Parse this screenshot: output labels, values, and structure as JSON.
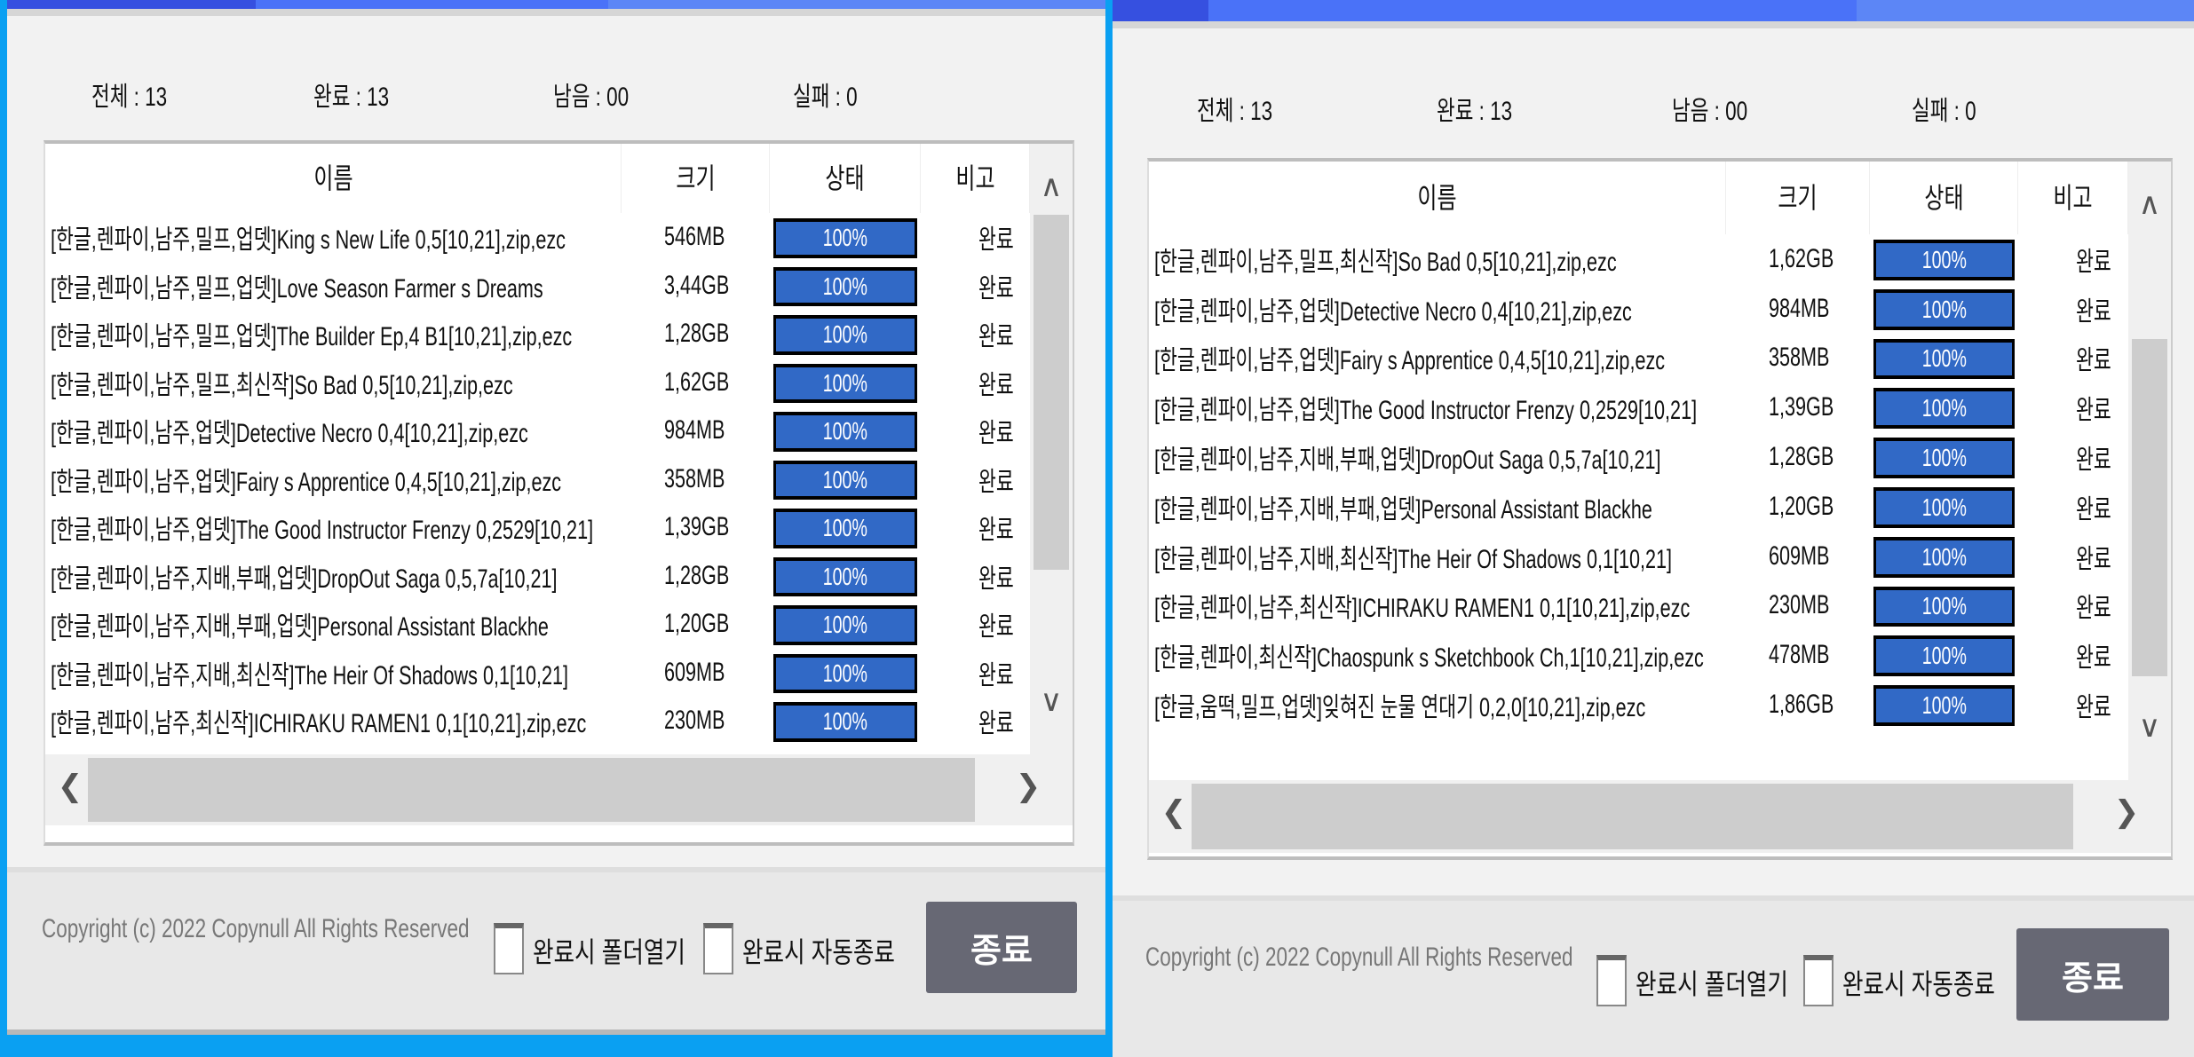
{
  "colors": {
    "accent": "#4a72f8",
    "progress": "#3169c6",
    "close_button": "#676874",
    "desktop": "#0aa0f2"
  },
  "columns": {
    "name": "이름",
    "size": "크기",
    "status": "상태",
    "note": "비고"
  },
  "windows": [
    {
      "stats": {
        "total": "전체 : 13",
        "done": "완료 : 13",
        "remaining": "남음 : 00",
        "failed": "실패 : 0"
      },
      "rows": [
        {
          "name": "[한글,렌파이,남주,밀프,업뎃]King s New Life 0,5[10,21],zip,ezc",
          "size": "546MB",
          "progress": "100%",
          "note": "완료"
        },
        {
          "name": "[한글,렌파이,남주,밀프,업뎃]Love Season Farmer s Dreams",
          "size": "3,44GB",
          "progress": "100%",
          "note": "완료"
        },
        {
          "name": "[한글,렌파이,남주,밀프,업뎃]The Builder Ep,4 B1[10,21],zip,ezc",
          "size": "1,28GB",
          "progress": "100%",
          "note": "완료"
        },
        {
          "name": "[한글,렌파이,남주,밀프,최신작]So Bad 0,5[10,21],zip,ezc",
          "size": "1,62GB",
          "progress": "100%",
          "note": "완료"
        },
        {
          "name": "[한글,렌파이,남주,업뎃]Detective Necro 0,4[10,21],zip,ezc",
          "size": "984MB",
          "progress": "100%",
          "note": "완료"
        },
        {
          "name": "[한글,렌파이,남주,업뎃]Fairy s Apprentice 0,4,5[10,21],zip,ezc",
          "size": "358MB",
          "progress": "100%",
          "note": "완료"
        },
        {
          "name": "[한글,렌파이,남주,업뎃]The Good Instructor Frenzy 0,2529[10,21]",
          "size": "1,39GB",
          "progress": "100%",
          "note": "완료"
        },
        {
          "name": "[한글,렌파이,남주,지배,부패,업뎃]DropOut Saga 0,5,7a[10,21]",
          "size": "1,28GB",
          "progress": "100%",
          "note": "완료"
        },
        {
          "name": "[한글,렌파이,남주,지배,부패,업뎃]Personal Assistant Blackhe",
          "size": "1,20GB",
          "progress": "100%",
          "note": "완료"
        },
        {
          "name": "[한글,렌파이,남주,지배,최신작]The Heir Of Shadows 0,1[10,21]",
          "size": "609MB",
          "progress": "100%",
          "note": "완료"
        },
        {
          "name": "[한글,렌파이,남주,최신작]ICHIRAKU RAMEN1 0,1[10,21],zip,ezc",
          "size": "230MB",
          "progress": "100%",
          "note": "완료"
        }
      ],
      "copyright": "Copyright (c) 2022 Copynull All Rights Reserved",
      "open_folder_label": "완료시 폴더열기",
      "auto_exit_label": "완료시 자동종료",
      "close_label": "종료",
      "open_folder_checked": false,
      "auto_exit_checked": false
    },
    {
      "stats": {
        "total": "전체 : 13",
        "done": "완료 : 13",
        "remaining": "남음 : 00",
        "failed": "실패 : 0"
      },
      "rows": [
        {
          "name": "[한글,렌파이,남주,밀프,최신작]So Bad 0,5[10,21],zip,ezc",
          "size": "1,62GB",
          "progress": "100%",
          "note": "완료"
        },
        {
          "name": "[한글,렌파이,남주,업뎃]Detective Necro 0,4[10,21],zip,ezc",
          "size": "984MB",
          "progress": "100%",
          "note": "완료"
        },
        {
          "name": "[한글,렌파이,남주,업뎃]Fairy s Apprentice 0,4,5[10,21],zip,ezc",
          "size": "358MB",
          "progress": "100%",
          "note": "완료"
        },
        {
          "name": "[한글,렌파이,남주,업뎃]The Good Instructor Frenzy 0,2529[10,21]",
          "size": "1,39GB",
          "progress": "100%",
          "note": "완료"
        },
        {
          "name": "[한글,렌파이,남주,지배,부패,업뎃]DropOut Saga 0,5,7a[10,21]",
          "size": "1,28GB",
          "progress": "100%",
          "note": "완료"
        },
        {
          "name": "[한글,렌파이,남주,지배,부패,업뎃]Personal Assistant Blackhe",
          "size": "1,20GB",
          "progress": "100%",
          "note": "완료"
        },
        {
          "name": "[한글,렌파이,남주,지배,최신작]The Heir Of Shadows 0,1[10,21]",
          "size": "609MB",
          "progress": "100%",
          "note": "완료"
        },
        {
          "name": "[한글,렌파이,남주,최신작]ICHIRAKU RAMEN1 0,1[10,21],zip,ezc",
          "size": "230MB",
          "progress": "100%",
          "note": "완료"
        },
        {
          "name": "[한글,렌파이,최신작]Chaospunk s Sketchbook Ch,1[10,21],zip,ezc",
          "size": "478MB",
          "progress": "100%",
          "note": "완료"
        },
        {
          "name": "[한글,움떡,밀프,업뎃]잊혀진 눈물 연대기 0,2,0[10,21],zip,ezc",
          "size": "1,86GB",
          "progress": "100%",
          "note": "완료"
        }
      ],
      "copyright": "Copyright (c) 2022 Copynull All Rights Reserved",
      "open_folder_label": "완료시 폴더열기",
      "auto_exit_label": "완료시 자동종료",
      "close_label": "종료",
      "open_folder_checked": false,
      "auto_exit_checked": false
    }
  ]
}
